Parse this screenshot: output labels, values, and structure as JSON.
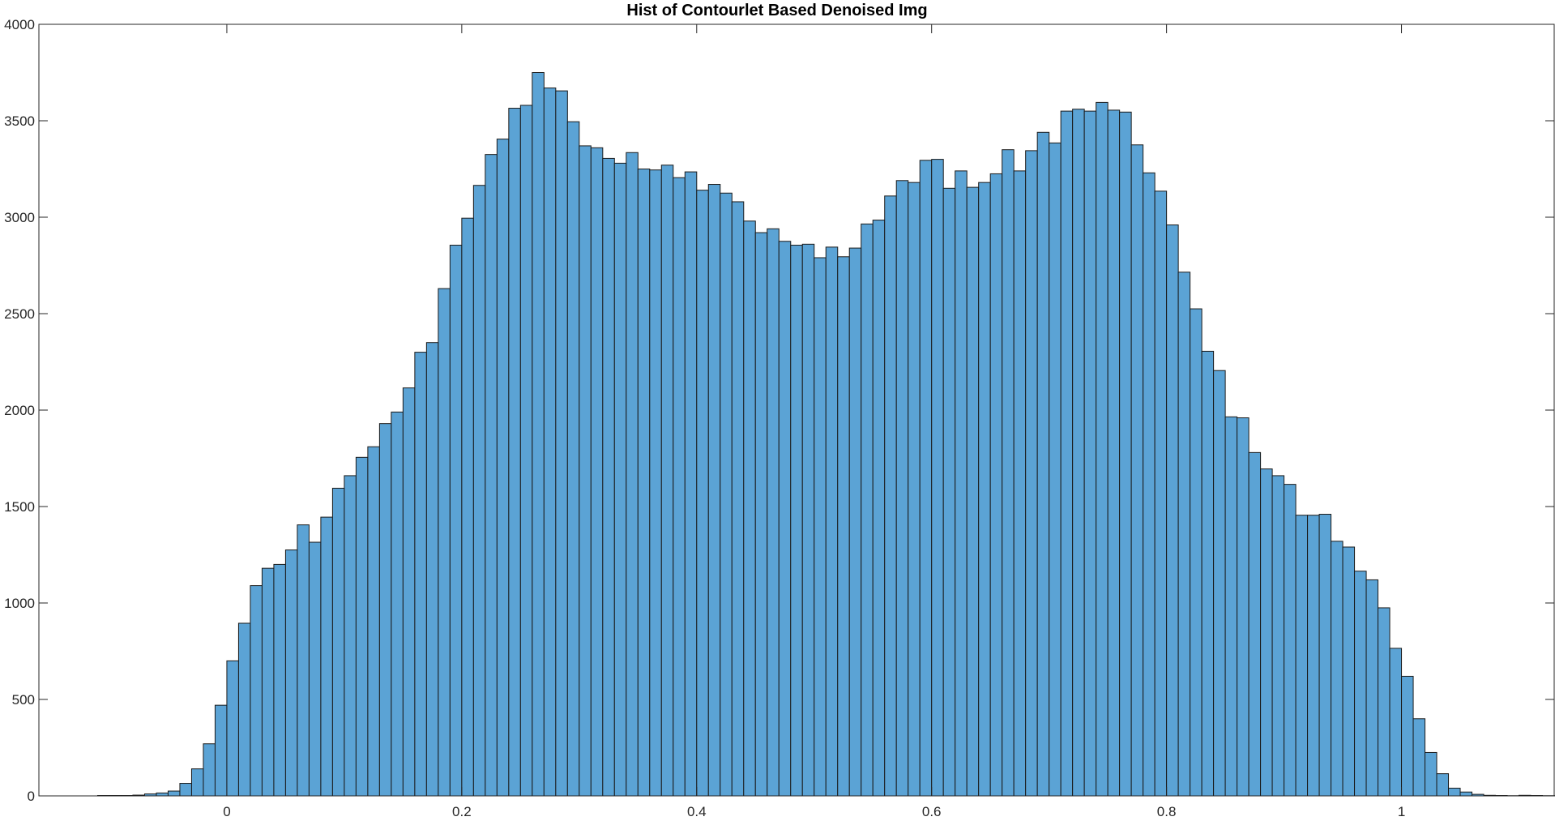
{
  "chart_data": {
    "type": "bar",
    "title": "Hist of Contourlet Based Denoised Img",
    "xlabel": "",
    "ylabel": "",
    "xlim": [
      -0.16,
      1.13
    ],
    "ylim": [
      0,
      4000
    ],
    "xticks": [
      0,
      0.2,
      0.4,
      0.6,
      0.8,
      1
    ],
    "xtick_labels": [
      "0",
      "0.2",
      "0.4",
      "0.6",
      "0.8",
      "1"
    ],
    "yticks": [
      0,
      500,
      1000,
      1500,
      2000,
      2500,
      3000,
      3500,
      4000
    ],
    "ytick_labels": [
      "0",
      "500",
      "1000",
      "1500",
      "2000",
      "2500",
      "3000",
      "3500",
      "4000"
    ],
    "grid": false,
    "legend": "none",
    "bar_color": "#5ba3d5",
    "edge_color": "#1a1a1a",
    "bin_width": 0.01,
    "bin_start": -0.11,
    "values": [
      2,
      2,
      2,
      4,
      10,
      15,
      25,
      65,
      140,
      270,
      470,
      700,
      895,
      1090,
      1180,
      1200,
      1275,
      1405,
      1315,
      1445,
      1595,
      1660,
      1755,
      1810,
      1930,
      1990,
      2115,
      2300,
      2350,
      2630,
      2855,
      2995,
      3165,
      3325,
      3405,
      3565,
      3580,
      3750,
      3670,
      3655,
      3495,
      3370,
      3360,
      3305,
      3280,
      3335,
      3250,
      3245,
      3270,
      3205,
      3235,
      3140,
      3170,
      3125,
      3080,
      2980,
      2920,
      2940,
      2875,
      2855,
      2860,
      2790,
      2845,
      2795,
      2840,
      2965,
      2985,
      3110,
      3190,
      3180,
      3295,
      3300,
      3150,
      3240,
      3155,
      3180,
      3225,
      3350,
      3240,
      3345,
      3440,
      3385,
      3550,
      3560,
      3550,
      3595,
      3555,
      3545,
      3375,
      3230,
      3135,
      2960,
      2715,
      2525,
      2305,
      2205,
      1965,
      1960,
      1780,
      1695,
      1660,
      1615,
      1455,
      1455,
      1460,
      1320,
      1290,
      1165,
      1120,
      975,
      765,
      620,
      400,
      225,
      115,
      40,
      20,
      8,
      3,
      2,
      1,
      3,
      2,
      1,
      1
    ]
  }
}
